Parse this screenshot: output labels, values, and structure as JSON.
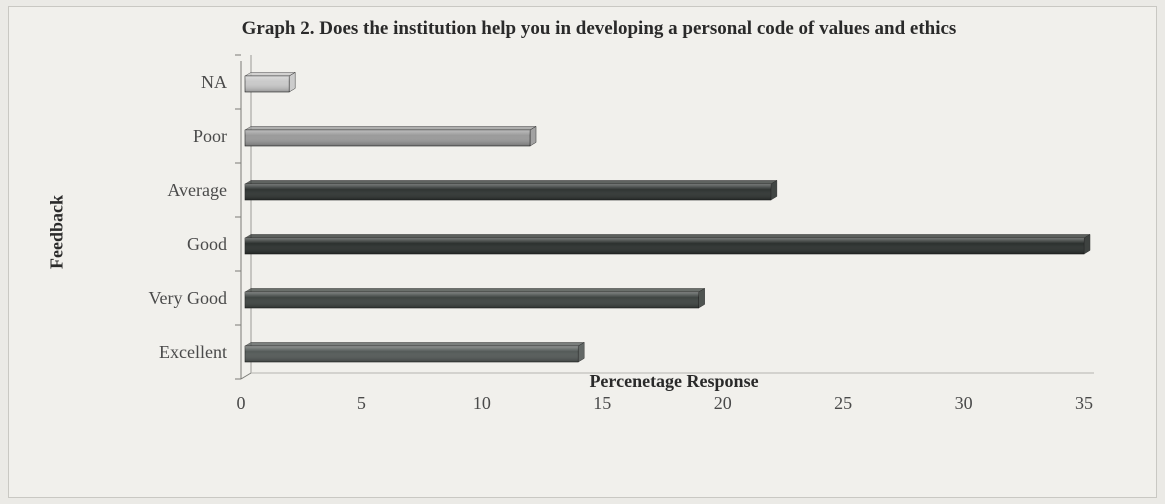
{
  "chart_data": {
    "type": "bar",
    "orientation": "horizontal",
    "title": "Graph 2. Does the institution help you in developing a personal code of values and ethics",
    "xlabel": "Percenetage Response",
    "ylabel": "Feedback",
    "categories": [
      "Excellent",
      "Very Good",
      "Good",
      "Average",
      "Poor",
      "NA"
    ],
    "values": [
      14,
      19,
      35,
      22,
      12,
      2
    ],
    "bar_colors": [
      "#545a58",
      "#3e4441",
      "#2b302e",
      "#2f3432",
      "#9a9a9a",
      "#c9c9c9"
    ],
    "xlim": [
      0,
      35
    ],
    "xticks": [
      0,
      5,
      10,
      15,
      20,
      25,
      30,
      35
    ],
    "grid": false,
    "legend": "none"
  }
}
